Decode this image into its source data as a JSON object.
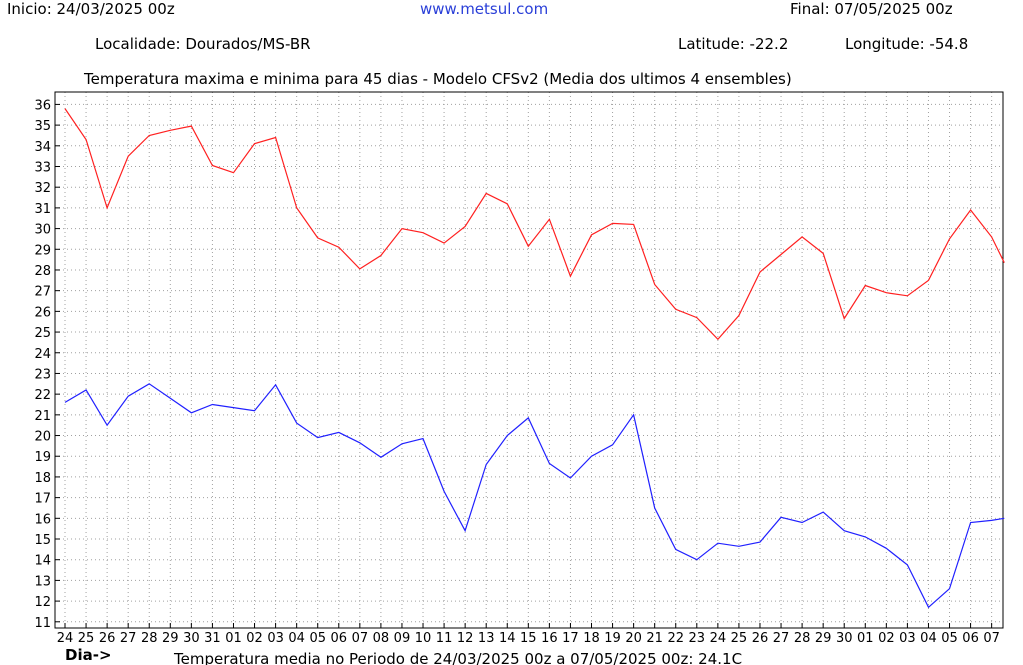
{
  "header": {
    "inicio": "Inicio: 24/03/2025 00z",
    "site": "www.metsul.com",
    "final": "Final: 07/05/2025 00z",
    "localidade": "Localidade: Dourados/MS-BR",
    "latitude": "Latitude: -22.2",
    "longitude": "Longitude: -54.8"
  },
  "chart_data": {
    "type": "line",
    "title": "Temperatura maxima e minima para 45 dias - Modelo CFSv2 (Media dos ultimos 4 ensembles)",
    "xlabel": "Dia->",
    "footer": "Temperatura media no Periodo de 24/03/2025 00z a 07/05/2025 00z: 24.1C",
    "x": [
      "24",
      "25",
      "26",
      "27",
      "28",
      "29",
      "30",
      "31",
      "01",
      "02",
      "03",
      "04",
      "05",
      "06",
      "07",
      "08",
      "09",
      "10",
      "11",
      "12",
      "13",
      "14",
      "15",
      "16",
      "17",
      "18",
      "19",
      "20",
      "21",
      "22",
      "23",
      "24",
      "25",
      "26",
      "27",
      "28",
      "29",
      "30",
      "01",
      "02",
      "03",
      "04",
      "05",
      "06",
      "07"
    ],
    "ylim": [
      10.7,
      36.6
    ],
    "yticks": [
      11,
      12,
      13,
      14,
      15,
      16,
      17,
      18,
      19,
      20,
      21,
      22,
      23,
      24,
      25,
      26,
      27,
      28,
      29,
      30,
      31,
      32,
      33,
      34,
      35,
      36
    ],
    "grid": true,
    "series": [
      {
        "color": "#ff2020",
        "points": [
          [
            0,
            35.8
          ],
          [
            1,
            34.3
          ],
          [
            2,
            31.0
          ],
          [
            3,
            33.5
          ],
          [
            4,
            34.5
          ],
          [
            5,
            34.75
          ],
          [
            6,
            34.95
          ],
          [
            7,
            33.05
          ],
          [
            8,
            32.7
          ],
          [
            9,
            34.1
          ],
          [
            10,
            34.4
          ],
          [
            11,
            31.0
          ],
          [
            12,
            29.55
          ],
          [
            13,
            29.1
          ],
          [
            14,
            28.05
          ],
          [
            15,
            28.7
          ],
          [
            16,
            30.0
          ],
          [
            17,
            29.8
          ],
          [
            18,
            29.3
          ],
          [
            19,
            30.1
          ],
          [
            20,
            31.7
          ],
          [
            21,
            31.2
          ],
          [
            22,
            29.15
          ],
          [
            23,
            30.45
          ],
          [
            24,
            27.7
          ],
          [
            25,
            29.7
          ],
          [
            26,
            30.25
          ],
          [
            27,
            30.2
          ],
          [
            28,
            27.3
          ],
          [
            29,
            26.1
          ],
          [
            30,
            25.7
          ],
          [
            31,
            24.65
          ],
          [
            32,
            25.8
          ],
          [
            33,
            27.9
          ],
          [
            34,
            28.75
          ],
          [
            35,
            29.6
          ],
          [
            36,
            28.8
          ],
          [
            37,
            25.65
          ],
          [
            38,
            27.25
          ],
          [
            39,
            26.9
          ],
          [
            40,
            26.75
          ],
          [
            41,
            27.5
          ],
          [
            42,
            29.5
          ],
          [
            43,
            30.9
          ],
          [
            44,
            29.6
          ],
          [
            44.6,
            28.35
          ]
        ]
      },
      {
        "color": "#2020ff",
        "points": [
          [
            0,
            21.6
          ],
          [
            1,
            22.2
          ],
          [
            2,
            20.5
          ],
          [
            3,
            21.9
          ],
          [
            4,
            22.5
          ],
          [
            5,
            21.8
          ],
          [
            6,
            21.1
          ],
          [
            7,
            21.5
          ],
          [
            8,
            21.35
          ],
          [
            9,
            21.2
          ],
          [
            10,
            22.45
          ],
          [
            11,
            20.6
          ],
          [
            12,
            19.9
          ],
          [
            13,
            20.15
          ],
          [
            14,
            19.65
          ],
          [
            15,
            18.95
          ],
          [
            16,
            19.6
          ],
          [
            17,
            19.85
          ],
          [
            18,
            17.3
          ],
          [
            19,
            15.4
          ],
          [
            20,
            18.6
          ],
          [
            21,
            20.0
          ],
          [
            22,
            20.85
          ],
          [
            23,
            18.65
          ],
          [
            24,
            17.95
          ],
          [
            25,
            19.0
          ],
          [
            26,
            19.55
          ],
          [
            27,
            21.0
          ],
          [
            28,
            16.5
          ],
          [
            29,
            14.5
          ],
          [
            30,
            14.0
          ],
          [
            31,
            14.8
          ],
          [
            32,
            14.65
          ],
          [
            33,
            14.85
          ],
          [
            34,
            16.05
          ],
          [
            35,
            15.8
          ],
          [
            36,
            16.3
          ],
          [
            37,
            15.4
          ],
          [
            38,
            15.1
          ],
          [
            39,
            14.55
          ],
          [
            40,
            13.75
          ],
          [
            41,
            11.7
          ],
          [
            42,
            12.6
          ],
          [
            43,
            15.8
          ],
          [
            44,
            15.9
          ],
          [
            44.6,
            16.0
          ]
        ]
      }
    ]
  }
}
